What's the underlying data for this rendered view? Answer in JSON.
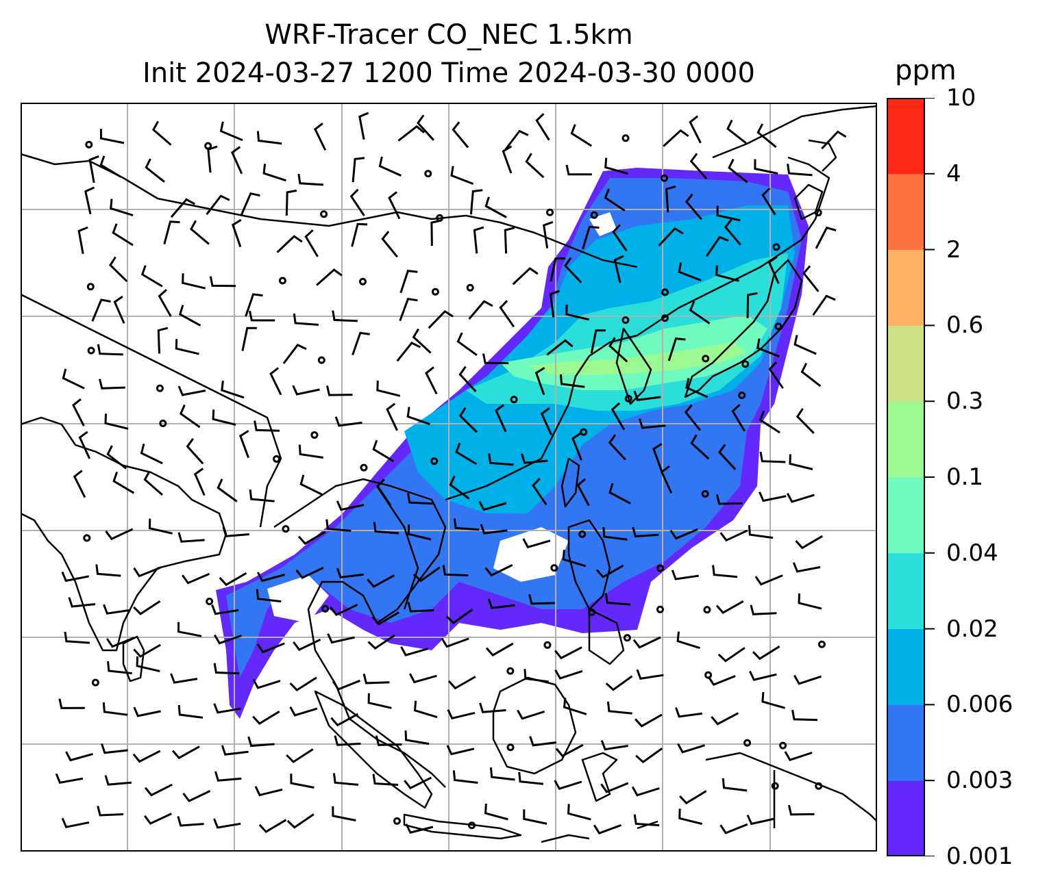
{
  "title_line1": "WRF-Tracer CO_NEC 1.5km",
  "title_line2": "Init 2024-03-27 1200 Time 2024-03-30 0000",
  "colorbar": {
    "unit": "ppm",
    "levels": [
      "0.001",
      "0.003",
      "0.006",
      "0.02",
      "0.04",
      "0.1",
      "0.3",
      "0.6",
      "2",
      "4",
      "10"
    ],
    "colors": [
      "#6229fa",
      "#3376f4",
      "#00b1e9",
      "#2bded9",
      "#6ffbbf",
      "#9bf991",
      "#cde086",
      "#fdb163",
      "#fe7240",
      "#ff2817"
    ]
  },
  "map": {
    "gridlines": "on",
    "background": "#ffffff",
    "coastline_color": "#000000",
    "gridline_color": "#b0b0b0",
    "field": "CO tracer concentration",
    "overlay": "wind barbs"
  }
}
